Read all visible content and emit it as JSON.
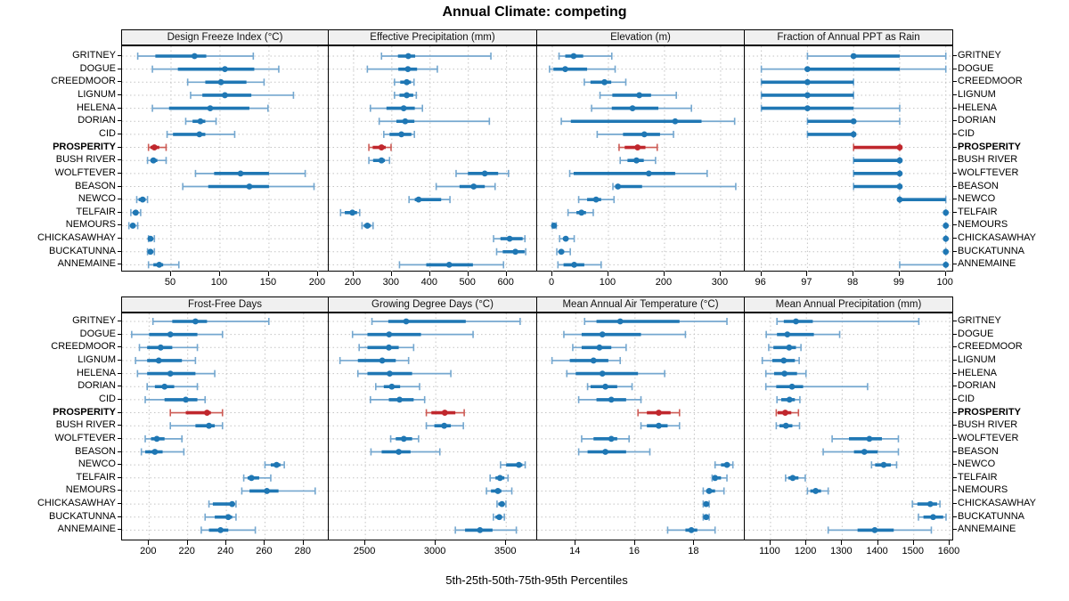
{
  "title": "Annual Climate: competing",
  "caption": "5th-25th-50th-75th-95th Percentiles",
  "highlight_site": "PROSPERITY",
  "sites": [
    "GRITNEY",
    "DOGUE",
    "CREEDMOOR",
    "LIGNUM",
    "HELENA",
    "DORIAN",
    "CID",
    "PROSPERITY",
    "BUSH RIVER",
    "WOLFTEVER",
    "BEASON",
    "NEWCO",
    "TELFAIR",
    "NEMOURS",
    "CHICKASAWHAY",
    "BUCKATUNNA",
    "ANNEMAINE"
  ],
  "colors": {
    "blue_main": "#1f77b4",
    "blue_light": "#74a7cf",
    "red_main": "#c0272d",
    "red_light": "#cd5b55",
    "grid": "#c4c4c4",
    "strip_bg": "#f0f0f0",
    "panel_border": "#000000"
  },
  "chart_data": [
    {
      "type": "dot-interval",
      "title": "Design Freeze Index (°C)",
      "row": 0,
      "col": 0,
      "xlim": [
        0,
        211
      ],
      "ticks": [
        50,
        100,
        150,
        200
      ],
      "percentile_labels": [
        "p5",
        "p25",
        "p50",
        "p75",
        "p95"
      ],
      "values": [
        [
          16,
          34,
          74,
          86,
          134
        ],
        [
          31,
          57,
          105,
          135,
          160
        ],
        [
          67,
          85,
          101,
          127,
          145
        ],
        [
          70,
          82,
          105,
          132,
          175
        ],
        [
          31,
          48,
          90,
          130,
          149
        ],
        [
          65,
          72,
          80,
          85,
          96
        ],
        [
          46,
          52,
          79,
          85,
          115
        ],
        [
          27,
          29,
          33,
          38,
          45
        ],
        [
          26,
          29,
          32,
          36,
          45
        ],
        [
          75,
          94,
          121,
          150,
          187
        ],
        [
          62,
          88,
          130,
          150,
          196
        ],
        [
          15,
          17,
          21,
          24,
          26
        ],
        [
          9,
          11,
          14,
          16,
          19
        ],
        [
          7,
          9,
          11,
          13,
          16
        ],
        [
          27,
          28,
          29,
          31,
          33
        ],
        [
          26,
          28,
          29,
          31,
          33
        ],
        [
          27,
          32,
          38,
          42,
          58
        ]
      ]
    },
    {
      "type": "dot-interval",
      "title": "Effective Precipitation (mm)",
      "row": 0,
      "col": 1,
      "xlim": [
        135,
        680
      ],
      "ticks": [
        200,
        300,
        400,
        500,
        600
      ],
      "values": [
        [
          273,
          316,
          343,
          361,
          559
        ],
        [
          236,
          317,
          342,
          366,
          419
        ],
        [
          307,
          322,
          339,
          350,
          358
        ],
        [
          307,
          320,
          339,
          356,
          364
        ],
        [
          244,
          286,
          331,
          360,
          380
        ],
        [
          267,
          312,
          335,
          359,
          555
        ],
        [
          279,
          294,
          325,
          351,
          359
        ],
        [
          240,
          250,
          273,
          284,
          298
        ],
        [
          240,
          251,
          273,
          282,
          294
        ],
        [
          468,
          499,
          543,
          578,
          605
        ],
        [
          416,
          477,
          514,
          543,
          570
        ],
        [
          345,
          360,
          370,
          429,
          452
        ],
        [
          166,
          177,
          197,
          209,
          216
        ],
        [
          222,
          227,
          236,
          245,
          251
        ],
        [
          566,
          584,
          608,
          642,
          648
        ],
        [
          574,
          590,
          623,
          647,
          650
        ],
        [
          320,
          390,
          450,
          512,
          592
        ]
      ]
    },
    {
      "type": "dot-interval",
      "title": "Elevation (m)",
      "row": 0,
      "col": 2,
      "xlim": [
        -27,
        343
      ],
      "ticks": [
        0,
        100,
        200,
        300
      ],
      "values": [
        [
          12,
          23,
          38,
          55,
          106
        ],
        [
          -5,
          2,
          23,
          62,
          112
        ],
        [
          57,
          68,
          93,
          105,
          131
        ],
        [
          85,
          107,
          155,
          176,
          221
        ],
        [
          70,
          106,
          143,
          189,
          248
        ],
        [
          16,
          33,
          219,
          266,
          325
        ],
        [
          80,
          126,
          164,
          192,
          216
        ],
        [
          119,
          129,
          152,
          166,
          187
        ],
        [
          121,
          134,
          150,
          163,
          184
        ],
        [
          31,
          38,
          172,
          219,
          276
        ],
        [
          108,
          112,
          117,
          160,
          327
        ],
        [
          47,
          62,
          78,
          87,
          110
        ],
        [
          28,
          43,
          52,
          60,
          73
        ],
        [
          0,
          1,
          3,
          4,
          7
        ],
        [
          13,
          19,
          24,
          28,
          39
        ],
        [
          8,
          13,
          16,
          21,
          32
        ],
        [
          10,
          20,
          39,
          57,
          87
        ]
      ]
    },
    {
      "type": "dot-interval",
      "title": "Fraction of Annual PPT as Rain",
      "row": 0,
      "col": 3,
      "xlim": [
        95.64,
        100.16
      ],
      "ticks": [
        96,
        97,
        98,
        99,
        100
      ],
      "values": [
        [
          97,
          98,
          98,
          99,
          100
        ],
        [
          96,
          97,
          97,
          99,
          100
        ],
        [
          96,
          96,
          97,
          98,
          98
        ],
        [
          96,
          96,
          97,
          98,
          98
        ],
        [
          96,
          96,
          97,
          98,
          99
        ],
        [
          97,
          97,
          98,
          98,
          99
        ],
        [
          97,
          97,
          98,
          98,
          98
        ],
        [
          98,
          98,
          99,
          99,
          99
        ],
        [
          98,
          98,
          99,
          99,
          99
        ],
        [
          98,
          98,
          99,
          99,
          99
        ],
        [
          98,
          98,
          99,
          99,
          99
        ],
        [
          99,
          99,
          99,
          100,
          100
        ],
        [
          100,
          100,
          100,
          100,
          100
        ],
        [
          100,
          100,
          100,
          100,
          100
        ],
        [
          100,
          100,
          100,
          100,
          100
        ],
        [
          100,
          100,
          100,
          100,
          100
        ],
        [
          99,
          100,
          100,
          100,
          100
        ]
      ]
    },
    {
      "type": "dot-interval",
      "title": "Frost-Free Days",
      "row": 1,
      "col": 0,
      "xlim": [
        186,
        293
      ],
      "ticks": [
        200,
        220,
        240,
        260,
        280
      ],
      "values": [
        [
          202,
          212,
          224,
          230,
          262
        ],
        [
          191,
          200,
          211,
          225,
          238
        ],
        [
          195,
          199,
          206,
          212,
          225
        ],
        [
          193,
          199,
          205,
          217,
          224
        ],
        [
          194,
          199,
          211,
          224,
          234
        ],
        [
          199,
          203,
          208,
          213,
          225
        ],
        [
          198,
          208,
          219,
          225,
          229
        ],
        [
          211,
          219,
          230,
          232,
          238
        ],
        [
          211,
          224,
          231,
          234,
          238
        ],
        [
          198,
          201,
          204,
          208,
          217
        ],
        [
          196,
          198,
          203,
          207,
          218
        ],
        [
          260,
          263,
          266,
          268,
          270
        ],
        [
          249,
          251,
          253,
          257,
          263
        ],
        [
          248,
          252,
          261,
          267,
          286
        ],
        [
          231,
          233,
          243,
          244,
          245
        ],
        [
          229,
          234,
          241,
          243,
          245
        ],
        [
          227,
          231,
          237,
          241,
          255
        ]
      ]
    },
    {
      "type": "dot-interval",
      "title": "Growing Degree Days (°C)",
      "row": 1,
      "col": 1,
      "xlim": [
        2240,
        3720
      ],
      "ticks": [
        2500,
        3000,
        3500
      ],
      "values": [
        [
          2547,
          2663,
          2790,
          3213,
          3599
        ],
        [
          2409,
          2515,
          2669,
          2895,
          3265
        ],
        [
          2456,
          2515,
          2667,
          2737,
          2843
        ],
        [
          2320,
          2447,
          2620,
          2716,
          2807
        ],
        [
          2447,
          2515,
          2673,
          2832,
          3107
        ],
        [
          2574,
          2631,
          2688,
          2747,
          2885
        ],
        [
          2536,
          2667,
          2743,
          2843,
          2921
        ],
        [
          2933,
          2969,
          3064,
          3139,
          3202
        ],
        [
          2933,
          2990,
          3060,
          3107,
          3196
        ],
        [
          2680,
          2716,
          2773,
          2832,
          2878
        ],
        [
          2540,
          2616,
          2737,
          2821,
          3029
        ],
        [
          3460,
          3500,
          3590,
          3615,
          3635
        ],
        [
          3386,
          3424,
          3456,
          3487,
          3513
        ],
        [
          3360,
          3392,
          3441,
          3466,
          3540
        ],
        [
          3435,
          3445,
          3470,
          3483,
          3498
        ],
        [
          3409,
          3424,
          3451,
          3470,
          3487
        ],
        [
          3139,
          3208,
          3314,
          3403,
          3572
        ]
      ]
    },
    {
      "type": "dot-interval",
      "title": "Mean Annual Air Temperature (°C)",
      "row": 1,
      "col": 2,
      "xlim": [
        12.7,
        19.7
      ],
      "ticks": [
        14,
        16,
        18
      ],
      "values": [
        [
          14.3,
          14.7,
          15.5,
          17.5,
          19.1
        ],
        [
          13.6,
          14.2,
          14.9,
          16.2,
          17.7
        ],
        [
          13.9,
          14.2,
          14.8,
          15.2,
          15.7
        ],
        [
          13.2,
          13.8,
          14.6,
          15.1,
          15.5
        ],
        [
          13.7,
          14.0,
          14.9,
          16.1,
          17.0
        ],
        [
          14.4,
          14.5,
          15.0,
          15.4,
          15.9
        ],
        [
          14.1,
          14.7,
          15.2,
          15.7,
          16.2
        ],
        [
          16.1,
          16.4,
          16.8,
          17.2,
          17.5
        ],
        [
          16.2,
          16.4,
          16.8,
          17.1,
          17.5
        ],
        [
          14.2,
          14.6,
          15.2,
          15.4,
          15.8
        ],
        [
          14.1,
          14.4,
          15.0,
          15.7,
          16.5
        ],
        [
          18.7,
          18.9,
          19.1,
          19.2,
          19.3
        ],
        [
          18.6,
          18.7,
          18.7,
          18.9,
          19.1
        ],
        [
          18.3,
          18.4,
          18.5,
          18.7,
          19.0
        ],
        [
          18.3,
          18.4,
          18.4,
          18.5,
          18.5
        ],
        [
          18.3,
          18.3,
          18.4,
          18.4,
          18.5
        ],
        [
          17.1,
          17.7,
          17.9,
          18.1,
          18.7
        ]
      ]
    },
    {
      "type": "dot-interval",
      "title": "Mean Annual Precipitation (mm)",
      "row": 1,
      "col": 3,
      "xlim": [
        1028,
        1610
      ],
      "ticks": [
        1100,
        1200,
        1300,
        1400,
        1500,
        1600
      ],
      "values": [
        [
          1118,
          1137,
          1171,
          1218,
          1514
        ],
        [
          1088,
          1118,
          1147,
          1221,
          1293
        ],
        [
          1095,
          1108,
          1152,
          1171,
          1185
        ],
        [
          1077,
          1105,
          1137,
          1168,
          1180
        ],
        [
          1087,
          1110,
          1139,
          1174,
          1199
        ],
        [
          1087,
          1116,
          1160,
          1191,
          1371
        ],
        [
          1118,
          1130,
          1153,
          1168,
          1182
        ],
        [
          1116,
          1120,
          1141,
          1158,
          1178
        ],
        [
          1116,
          1125,
          1143,
          1161,
          1181
        ],
        [
          1272,
          1319,
          1376,
          1411,
          1457
        ],
        [
          1247,
          1333,
          1362,
          1399,
          1457
        ],
        [
          1382,
          1392,
          1416,
          1436,
          1452
        ],
        [
          1142,
          1150,
          1162,
          1178,
          1197
        ],
        [
          1203,
          1211,
          1226,
          1241,
          1261
        ],
        [
          1496,
          1510,
          1546,
          1565,
          1573
        ],
        [
          1513,
          1527,
          1554,
          1582,
          1590
        ],
        [
          1261,
          1343,
          1391,
          1444,
          1549
        ]
      ]
    }
  ]
}
